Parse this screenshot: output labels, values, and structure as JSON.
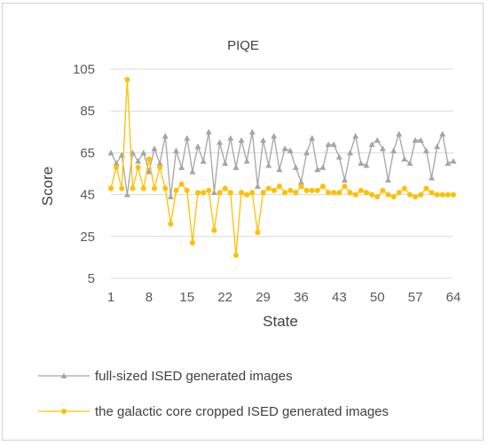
{
  "chart_data": {
    "type": "line",
    "title": "PIQE",
    "xlabel": "State",
    "ylabel": "Score",
    "ylim": [
      5,
      105
    ],
    "yticks": [
      5,
      25,
      45,
      65,
      85,
      105
    ],
    "xlim": [
      1,
      64
    ],
    "xticks": [
      1,
      8,
      15,
      22,
      29,
      36,
      43,
      50,
      57,
      64
    ],
    "grid": "horizontal",
    "legend": "bottom",
    "series": [
      {
        "name": "full-sized ISED generated images",
        "color": "#a5a5a5",
        "marker": "triangle",
        "x": [
          1,
          2,
          3,
          4,
          5,
          6,
          7,
          8,
          9,
          10,
          11,
          12,
          13,
          14,
          15,
          16,
          17,
          18,
          19,
          20,
          21,
          22,
          23,
          24,
          25,
          26,
          27,
          28,
          29,
          30,
          31,
          32,
          33,
          34,
          35,
          36,
          37,
          38,
          39,
          40,
          41,
          42,
          43,
          44,
          45,
          46,
          47,
          48,
          49,
          50,
          51,
          52,
          53,
          54,
          55,
          56,
          57,
          58,
          59,
          60,
          61,
          62,
          63,
          64
        ],
        "values": [
          65,
          60,
          64,
          45,
          65,
          61,
          65,
          56,
          67,
          60,
          73,
          44,
          66,
          58,
          72,
          56,
          68,
          61,
          75,
          46,
          70,
          60,
          72,
          58,
          71,
          61,
          75,
          49,
          71,
          59,
          73,
          57,
          67,
          66,
          58,
          51,
          65,
          72,
          57,
          58,
          69,
          69,
          63,
          52,
          65,
          73,
          60,
          59,
          69,
          71,
          67,
          52,
          66,
          74,
          62,
          60,
          71,
          71,
          66,
          53,
          68,
          74,
          60,
          61
        ]
      },
      {
        "name": "the galactic core cropped ISED generated images",
        "color": "#ffc000",
        "marker": "circle",
        "x": [
          1,
          2,
          3,
          4,
          5,
          6,
          7,
          8,
          9,
          10,
          11,
          12,
          13,
          14,
          15,
          16,
          17,
          18,
          19,
          20,
          21,
          22,
          23,
          24,
          25,
          26,
          27,
          28,
          29,
          30,
          31,
          32,
          33,
          34,
          35,
          36,
          37,
          38,
          39,
          40,
          41,
          42,
          43,
          44,
          45,
          46,
          47,
          48,
          49,
          50,
          51,
          52,
          53,
          54,
          55,
          56,
          57,
          58,
          59,
          60,
          61,
          62,
          63,
          64
        ],
        "values": [
          48,
          58,
          48,
          100,
          48,
          58,
          48,
          62,
          48,
          58,
          48,
          31,
          47,
          50,
          47,
          22,
          46,
          46,
          47,
          28,
          46,
          48,
          46,
          16,
          46,
          45,
          46,
          27,
          46,
          48,
          47,
          49,
          46,
          47,
          46,
          49,
          47,
          47,
          47,
          49,
          46,
          46,
          46,
          49,
          46,
          45,
          47,
          46,
          45,
          44,
          47,
          45,
          44,
          46,
          48,
          45,
          44,
          45,
          48,
          46,
          45,
          45,
          45,
          45
        ]
      }
    ]
  }
}
